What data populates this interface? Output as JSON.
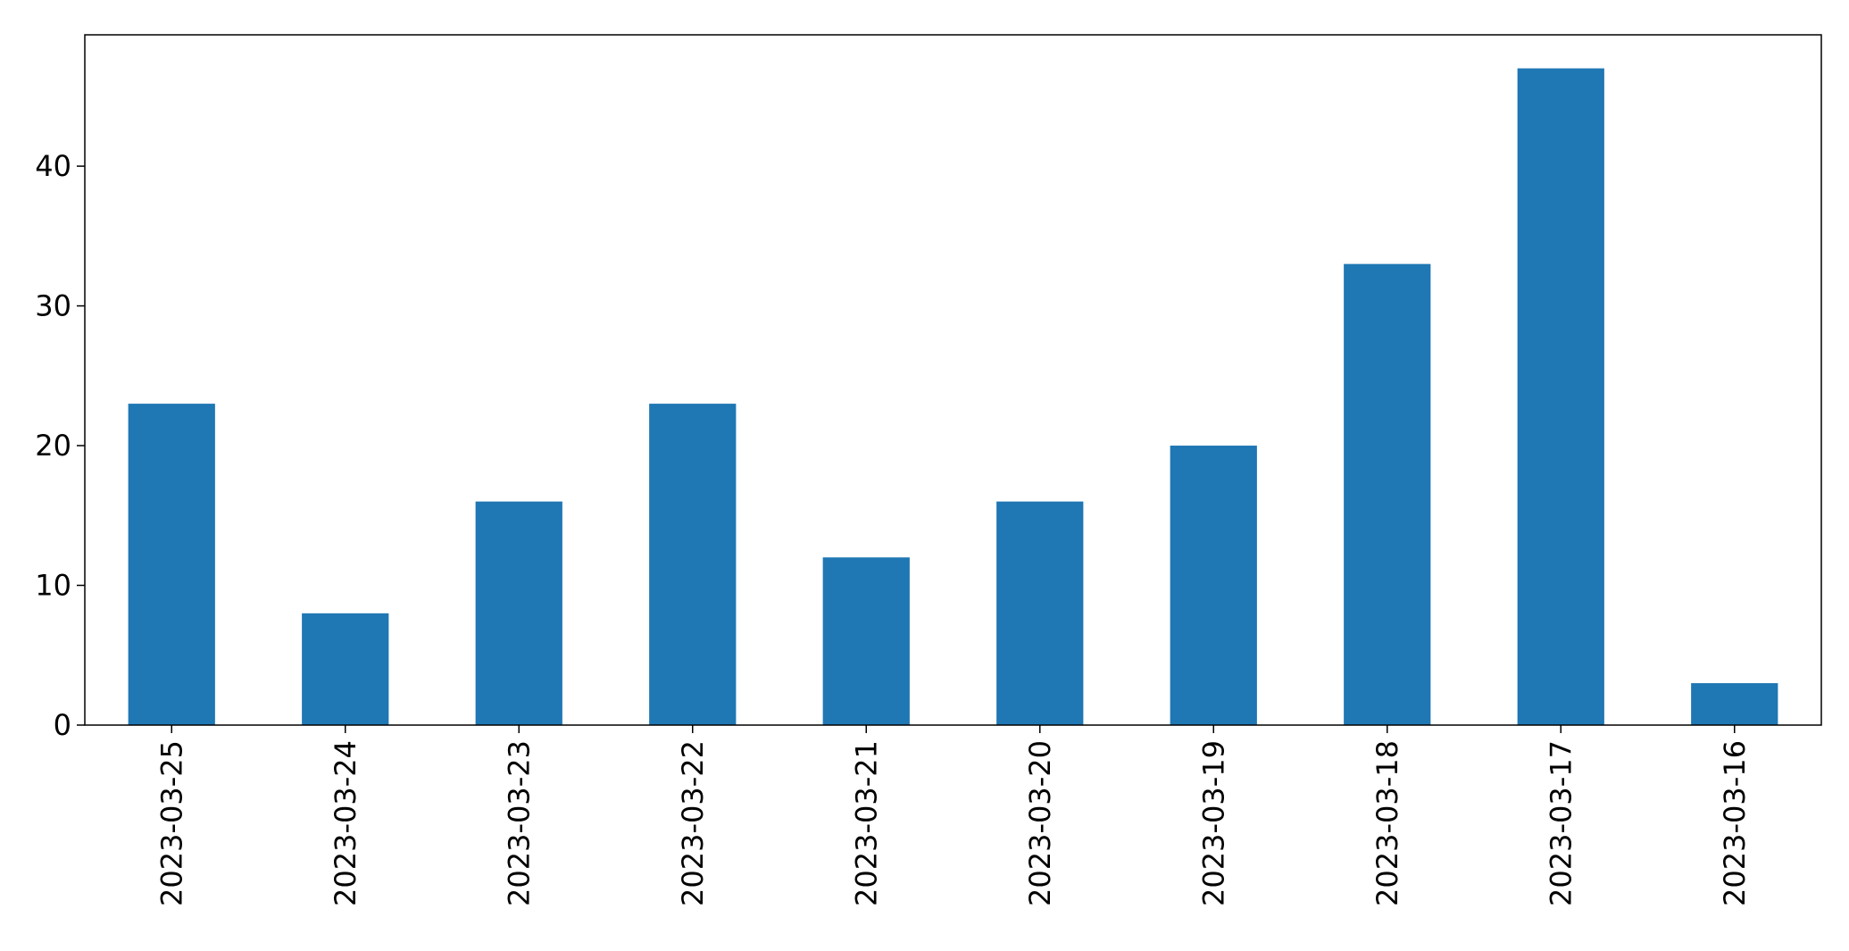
{
  "colors": {
    "bar": "#1f77b4",
    "axis": "#000000",
    "background": "#ffffff"
  },
  "chart_data": {
    "type": "bar",
    "categories": [
      "2023-03-25",
      "2023-03-24",
      "2023-03-23",
      "2023-03-22",
      "2023-03-21",
      "2023-03-20",
      "2023-03-19",
      "2023-03-18",
      "2023-03-17",
      "2023-03-16"
    ],
    "values": [
      23,
      8,
      16,
      23,
      12,
      16,
      20,
      33,
      47,
      3
    ],
    "title": "",
    "xlabel": "",
    "ylabel": "",
    "ylim": [
      0,
      49.4
    ],
    "yticks": [
      0,
      10,
      20,
      30,
      40
    ],
    "grid": false,
    "legend": "none"
  }
}
